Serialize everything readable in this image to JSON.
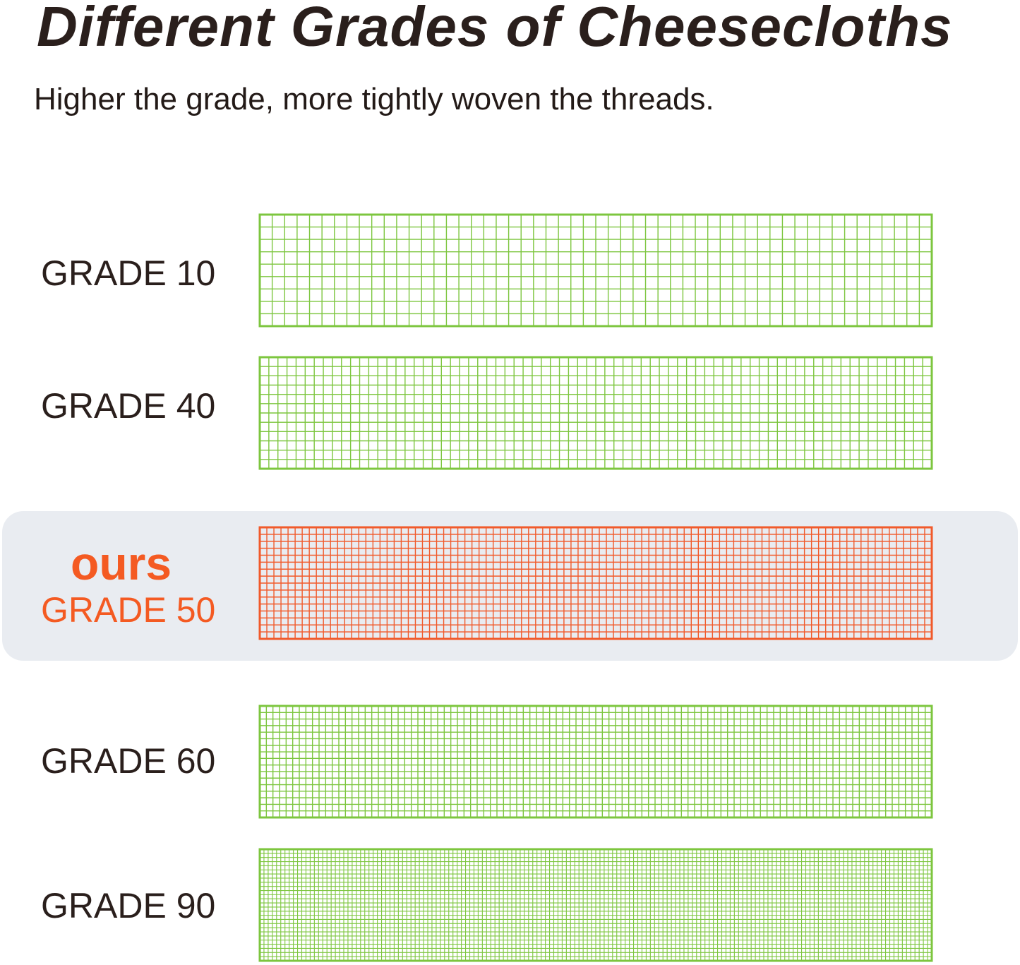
{
  "header": {
    "title": "Different Grades of Cheesecloths",
    "subtitle": "Higher the grade, more tightly woven the threads."
  },
  "grades": [
    {
      "label": "GRADE 10",
      "grade": 10,
      "columns": 54,
      "rows": 9,
      "color": "#7dc63f",
      "highlight": false
    },
    {
      "label": "GRADE 40",
      "grade": 40,
      "columns": 74,
      "rows": 12,
      "color": "#7dc63f",
      "highlight": false
    },
    {
      "label": "GRADE 50",
      "grade": 50,
      "badge": "ours",
      "columns": 95,
      "rows": 16,
      "color": "#f15a2b",
      "highlight": true
    },
    {
      "label": "GRADE 60",
      "grade": 60,
      "columns": 102,
      "rows": 17,
      "color": "#7dc63f",
      "highlight": false
    },
    {
      "label": "GRADE 90",
      "grade": 90,
      "columns": 160,
      "rows": 27,
      "color": "#7dc63f",
      "highlight": false
    }
  ]
}
